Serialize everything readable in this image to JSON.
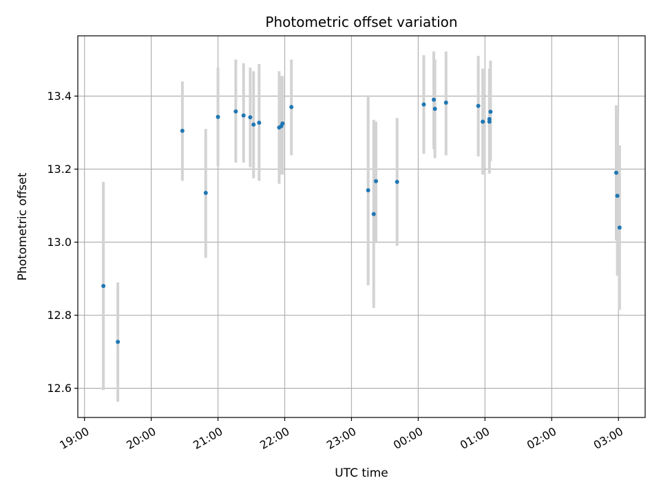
{
  "chart_data": {
    "type": "scatter",
    "title": "Photometric offset variation",
    "xlabel": "UTC time",
    "ylabel": "Photometric offset",
    "x_ticks": [
      "19:00",
      "20:00",
      "21:00",
      "22:00",
      "23:00",
      "00:00",
      "01:00",
      "02:00",
      "03:00"
    ],
    "y_ticks": [
      "12.6",
      "12.8",
      "13.0",
      "13.2",
      "13.4"
    ],
    "xlim": [
      "18:54",
      "03:24"
    ],
    "ylim": [
      12.52,
      13.565
    ],
    "grid": true,
    "colors": {
      "point": "#1f77b4",
      "errorbar": "#d3d3d3",
      "grid": "#b0b0b0"
    },
    "points": [
      {
        "x": "19:17",
        "y": 12.88,
        "ylo": 12.595,
        "yhi": 13.165
      },
      {
        "x": "19:30",
        "y": 12.727,
        "ylo": 12.563,
        "yhi": 12.89
      },
      {
        "x": "20:28",
        "y": 13.305,
        "ylo": 13.168,
        "yhi": 13.44
      },
      {
        "x": "20:49",
        "y": 13.135,
        "ylo": 12.957,
        "yhi": 13.31
      },
      {
        "x": "21:00",
        "y": 13.343,
        "ylo": 13.208,
        "yhi": 13.478
      },
      {
        "x": "21:16",
        "y": 13.358,
        "ylo": 13.218,
        "yhi": 13.5
      },
      {
        "x": "21:23",
        "y": 13.347,
        "ylo": 13.218,
        "yhi": 13.49
      },
      {
        "x": "21:29",
        "y": 13.342,
        "ylo": 13.205,
        "yhi": 13.478
      },
      {
        "x": "21:32",
        "y": 13.322,
        "ylo": 13.175,
        "yhi": 13.468
      },
      {
        "x": "21:37",
        "y": 13.327,
        "ylo": 13.168,
        "yhi": 13.488
      },
      {
        "x": "21:55",
        "y": 13.314,
        "ylo": 13.16,
        "yhi": 13.468
      },
      {
        "x": "21:57",
        "y": 13.318,
        "ylo": 13.185,
        "yhi": 13.455
      },
      {
        "x": "21:58",
        "y": 13.325,
        "ylo": 13.185,
        "yhi": 13.455
      },
      {
        "x": "22:06",
        "y": 13.37,
        "ylo": 13.238,
        "yhi": 13.5
      },
      {
        "x": "23:15",
        "y": 13.142,
        "ylo": 12.882,
        "yhi": 13.402
      },
      {
        "x": "23:20",
        "y": 13.077,
        "ylo": 12.82,
        "yhi": 13.335
      },
      {
        "x": "23:22",
        "y": 13.167,
        "ylo": 13.002,
        "yhi": 13.33
      },
      {
        "x": "23:41",
        "y": 13.165,
        "ylo": 12.99,
        "yhi": 13.34
      },
      {
        "x": "00:05",
        "y": 13.377,
        "ylo": 13.242,
        "yhi": 13.512
      },
      {
        "x": "00:14",
        "y": 13.39,
        "ylo": 13.255,
        "yhi": 13.522
      },
      {
        "x": "00:15",
        "y": 13.365,
        "ylo": 13.23,
        "yhi": 13.5
      },
      {
        "x": "00:25",
        "y": 13.382,
        "ylo": 13.238,
        "yhi": 13.522
      },
      {
        "x": "00:54",
        "y": 13.373,
        "ylo": 13.235,
        "yhi": 13.51
      },
      {
        "x": "00:58",
        "y": 13.33,
        "ylo": 13.185,
        "yhi": 13.475
      },
      {
        "x": "01:04",
        "y": 13.33,
        "ylo": 13.188,
        "yhi": 13.472
      },
      {
        "x": "01:04",
        "y": 13.337,
        "ylo": 13.2,
        "yhi": 13.475
      },
      {
        "x": "01:05",
        "y": 13.357,
        "ylo": 13.222,
        "yhi": 13.497
      },
      {
        "x": "02:58",
        "y": 13.19,
        "ylo": 13.005,
        "yhi": 13.375
      },
      {
        "x": "02:59",
        "y": 13.127,
        "ylo": 12.908,
        "yhi": 13.345
      },
      {
        "x": "03:01",
        "y": 13.04,
        "ylo": 12.815,
        "yhi": 13.265
      }
    ]
  }
}
